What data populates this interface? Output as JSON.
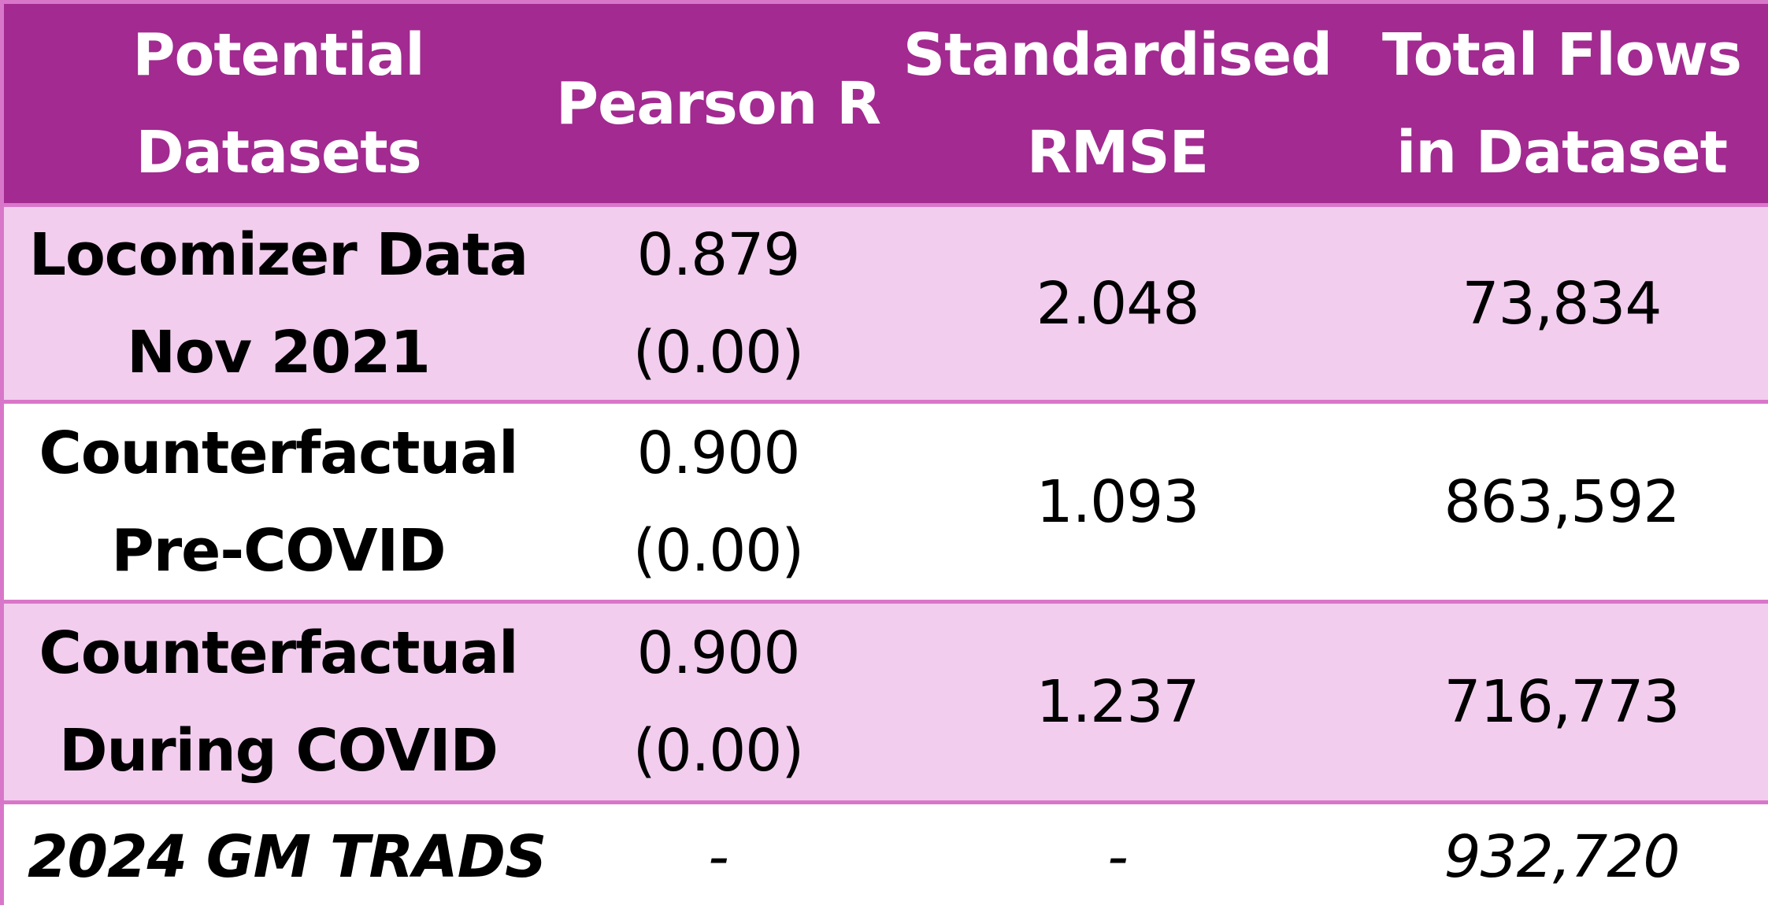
{
  "table": {
    "header": [
      [
        "Potential",
        "Datasets"
      ],
      [
        "Pearson R"
      ],
      [
        "Standardised",
        "RMSE"
      ],
      [
        "Total Flows",
        "in Dataset"
      ]
    ],
    "rows": [
      [
        [
          "Locomizer Data",
          "Nov 2021"
        ],
        [
          "0.879",
          "(0.00)"
        ],
        [
          "2.048"
        ],
        [
          "73,834"
        ]
      ],
      [
        [
          "Counterfactual",
          "Pre-COVID"
        ],
        [
          "0.900",
          "(0.00)"
        ],
        [
          "1.093"
        ],
        [
          "863,592"
        ]
      ],
      [
        [
          "Counterfactual",
          "During COVID"
        ],
        [
          "0.900",
          "(0.00)"
        ],
        [
          "1.237"
        ],
        [
          "716,773"
        ]
      ],
      [
        [
          "2024 GM TRADS"
        ],
        [
          "-"
        ],
        [
          "-"
        ],
        [
          "932,720"
        ]
      ]
    ]
  }
}
